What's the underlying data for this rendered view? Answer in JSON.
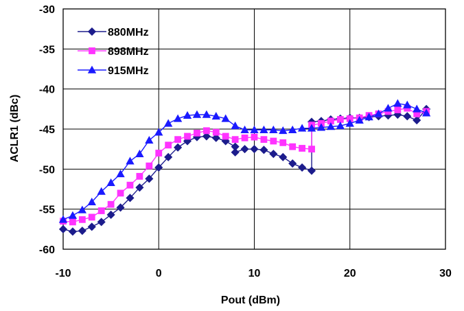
{
  "chart_data": {
    "type": "line",
    "title": "",
    "xlabel": "Pout (dBm)",
    "ylabel": "ACLR1 (dBc)",
    "xlim": [
      -10,
      30
    ],
    "ylim": [
      -60,
      -30
    ],
    "xticks": [
      -10,
      0,
      10,
      20,
      30
    ],
    "yticks": [
      -30,
      -35,
      -40,
      -45,
      -50,
      -55,
      -60
    ],
    "grid": true,
    "legend_position": "top-left",
    "series": [
      {
        "name": "880MHz",
        "color": "#1c1c8c",
        "marker": "diamond",
        "x": [
          -10,
          -9,
          -8,
          -7,
          -6,
          -5,
          -4,
          -3,
          -2,
          -1,
          0,
          1,
          2,
          3,
          4,
          5,
          6,
          7,
          8,
          8,
          9,
          10,
          11,
          12,
          13,
          14,
          15,
          16,
          16,
          17,
          18,
          19,
          20,
          21,
          22,
          23,
          24,
          25,
          26,
          27,
          28
        ],
        "y": [
          -57.5,
          -57.8,
          -57.7,
          -57.2,
          -56.6,
          -55.7,
          -54.8,
          -53.6,
          -52.3,
          -51.2,
          -49.8,
          -48.5,
          -47.3,
          -46.5,
          -46.0,
          -45.9,
          -46.1,
          -46.5,
          -47.2,
          -47.9,
          -47.5,
          -47.5,
          -47.6,
          -48.1,
          -48.5,
          -49.3,
          -49.8,
          -50.2,
          -44.1,
          -44.0,
          -43.8,
          -43.7,
          -43.6,
          -43.6,
          -43.5,
          -43.4,
          -43.3,
          -43.2,
          -43.4,
          -43.9,
          -42.5
        ]
      },
      {
        "name": "898MHz",
        "color": "#ff33ff",
        "marker": "square",
        "x": [
          -10,
          -9,
          -8,
          -7,
          -6,
          -5,
          -4,
          -3,
          -2,
          -1,
          0,
          1,
          2,
          3,
          4,
          5,
          6,
          7,
          8,
          9,
          10,
          11,
          12,
          13,
          14,
          15,
          16,
          16,
          17,
          18,
          19,
          20,
          21,
          22,
          23,
          24,
          25,
          26,
          27,
          28
        ],
        "y": [
          -56.5,
          -56.6,
          -56.3,
          -56.0,
          -55.2,
          -54.4,
          -53.0,
          -52.0,
          -50.9,
          -49.6,
          -48.0,
          -47.0,
          -46.3,
          -45.9,
          -45.5,
          -45.2,
          -45.4,
          -45.9,
          -46.3,
          -46.1,
          -46.0,
          -46.3,
          -46.5,
          -46.7,
          -47.2,
          -47.4,
          -47.5,
          -44.5,
          -44.3,
          -44.0,
          -43.8,
          -43.7,
          -43.6,
          -43.3,
          -43.1,
          -42.8,
          -42.6,
          -42.4,
          -43.1,
          -42.8
        ]
      },
      {
        "name": "915MHz",
        "color": "#1a1aff",
        "marker": "triangle",
        "x": [
          -10,
          -9,
          -8,
          -7,
          -6,
          -5,
          -4,
          -3,
          -2,
          -1,
          0,
          1,
          2,
          3,
          4,
          5,
          6,
          7,
          8,
          9,
          10,
          11,
          12,
          13,
          14,
          15,
          16,
          17,
          18,
          19,
          20,
          21,
          22,
          23,
          24,
          25,
          26,
          27,
          28
        ],
        "y": [
          -56.3,
          -55.8,
          -55.1,
          -54.1,
          -52.8,
          -51.7,
          -50.6,
          -49.0,
          -48.1,
          -46.4,
          -45.4,
          -44.3,
          -43.7,
          -43.3,
          -43.2,
          -43.2,
          -43.4,
          -43.7,
          -44.6,
          -45.1,
          -45.1,
          -45.1,
          -45.1,
          -45.2,
          -45.1,
          -44.9,
          -44.9,
          -44.8,
          -44.7,
          -44.6,
          -44.3,
          -43.9,
          -43.5,
          -43.1,
          -42.4,
          -41.8,
          -42.0,
          -42.5,
          -43.0
        ]
      }
    ]
  }
}
